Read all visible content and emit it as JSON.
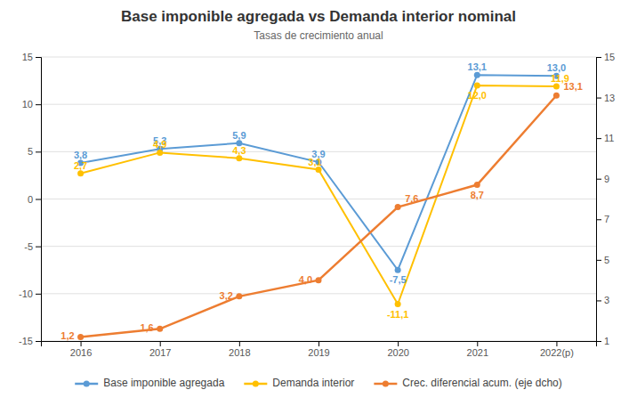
{
  "chart_data": {
    "type": "line",
    "title": "Base imponible agregada vs Demanda interior nominal",
    "subtitle": "Tasas de crecimiento anual",
    "categories": [
      "2016",
      "2017",
      "2018",
      "2019",
      "2020",
      "2021",
      "2022(p)"
    ],
    "series": [
      {
        "name": "Base imponible agregada",
        "color": "#5B9BD5",
        "marker": "circle",
        "values": [
          3.8,
          5.3,
          5.9,
          3.9,
          -7.5,
          13.1,
          13.0
        ],
        "value_labels": [
          "3,8",
          "5,3",
          "5,9",
          "3,9",
          "-7,5",
          "13,1",
          "13,0"
        ]
      },
      {
        "name": "Demanda interior",
        "color": "#FFC000",
        "marker": "circle",
        "values": [
          2.7,
          4.9,
          4.3,
          3.1,
          -11.1,
          12.0,
          11.9
        ],
        "value_labels": [
          "2,7",
          "4,9",
          "4,3",
          "3,1",
          "-11,1",
          "12,0",
          "11,9"
        ]
      },
      {
        "name": "Crec. diferencial acum. (eje dcho)",
        "color": "#ED7D31",
        "marker": "circle",
        "axis": "y2",
        "values": [
          1.2,
          1.6,
          3.2,
          4.0,
          7.6,
          8.7,
          13.1
        ],
        "value_labels": [
          "1,2",
          "1,6",
          "3,2",
          "4,0",
          "7,6",
          "8,7",
          "13,1"
        ]
      }
    ],
    "ylim": [
      -15,
      15
    ],
    "yticks": [
      -15,
      -10,
      -5,
      0,
      5,
      10,
      15
    ],
    "y2lim": [
      1,
      15
    ],
    "y2ticks": [
      1,
      3,
      5,
      7,
      9,
      11,
      13,
      15
    ],
    "grid": true,
    "legend": "bottom",
    "data_labels": true
  }
}
